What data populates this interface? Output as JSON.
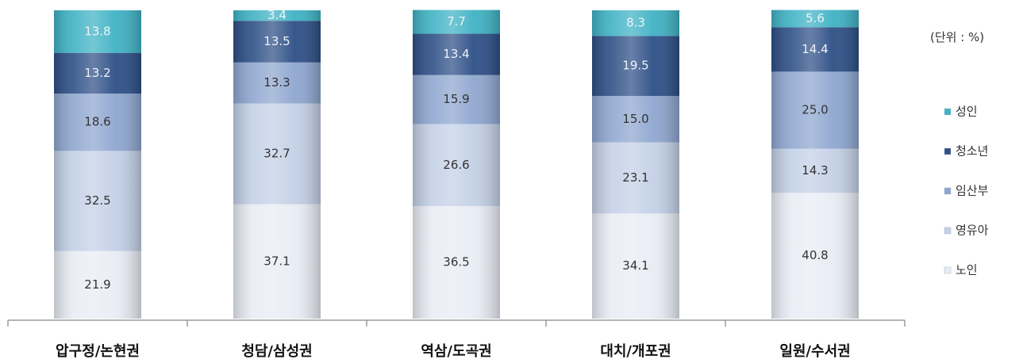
{
  "chart_data": {
    "type": "bar",
    "stacked": true,
    "unit_note": "(단위 : %)",
    "categories": [
      "압구정/논현권",
      "청담/삼성권",
      "역삼/도곡권",
      "대치/개포권",
      "일원/수서권"
    ],
    "series": [
      {
        "name": "노인",
        "color": "#e8ecf4",
        "values": [
          21.9,
          37.1,
          36.5,
          34.1,
          40.8
        ]
      },
      {
        "name": "영유아",
        "color": "#c3d0e6",
        "values": [
          32.5,
          32.7,
          26.6,
          23.1,
          14.3
        ]
      },
      {
        "name": "임산부",
        "color": "#8ea6cf",
        "values": [
          18.6,
          13.3,
          15.9,
          15.0,
          25.0
        ]
      },
      {
        "name": "청소년",
        "color": "#2d4f86",
        "values": [
          13.2,
          13.5,
          13.4,
          19.5,
          14.4
        ]
      },
      {
        "name": "성인",
        "color": "#3fb2c4",
        "values": [
          13.8,
          3.4,
          7.7,
          8.3,
          5.6
        ]
      }
    ],
    "legend_order": [
      "성인",
      "청소년",
      "임산부",
      "영유아",
      "노인"
    ],
    "legend_position": "right",
    "grid": false,
    "ylim": [
      0,
      100
    ]
  }
}
